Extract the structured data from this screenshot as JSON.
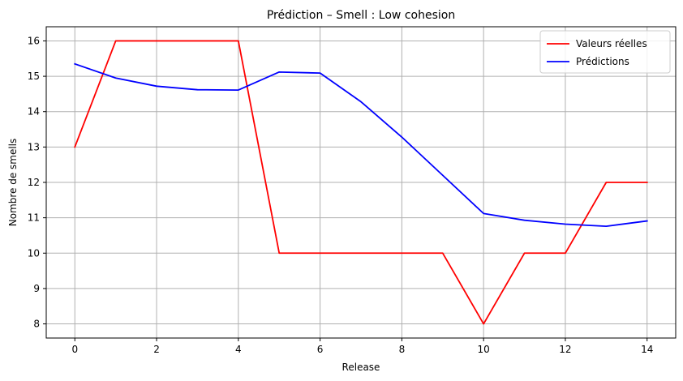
{
  "chart_data": {
    "type": "line",
    "title": "Prédiction – Smell : Low cohesion",
    "xlabel": "Release",
    "ylabel": "Nombre de smells",
    "xlim": [
      -0.7,
      14.7
    ],
    "ylim": [
      7.6,
      16.4
    ],
    "xticks": [
      0,
      2,
      4,
      6,
      8,
      10,
      12,
      14
    ],
    "yticks": [
      8,
      9,
      10,
      11,
      12,
      13,
      14,
      15,
      16
    ],
    "grid": true,
    "legend_position": "top-right",
    "x": [
      0,
      1,
      2,
      3,
      4,
      5,
      6,
      7,
      8,
      9,
      10,
      11,
      12,
      13,
      14
    ],
    "series": [
      {
        "name": "Valeurs réelles",
        "color": "#ff0000",
        "values": [
          13,
          16,
          16,
          16,
          16,
          10,
          10,
          10,
          10,
          10,
          8,
          10,
          10,
          12,
          12
        ]
      },
      {
        "name": "Prédictions",
        "color": "#0000ff",
        "values": [
          15.35,
          14.95,
          14.72,
          14.62,
          14.61,
          15.12,
          15.09,
          14.28,
          13.28,
          12.2,
          11.12,
          10.93,
          10.82,
          10.76,
          10.91
        ]
      }
    ]
  }
}
